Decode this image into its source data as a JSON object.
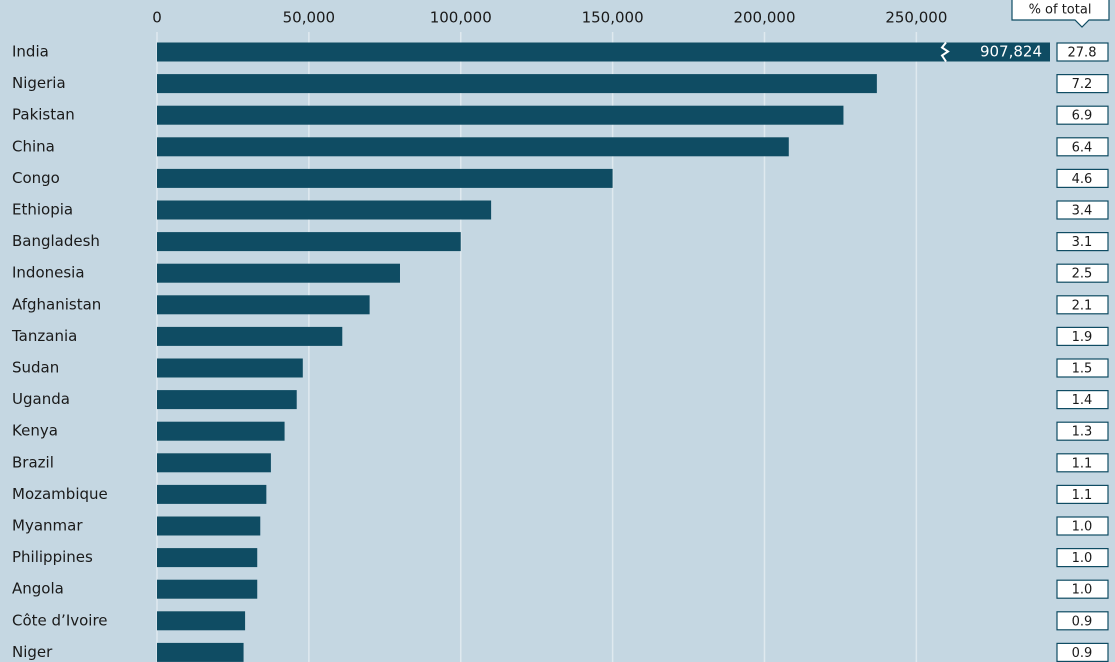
{
  "chart_data": {
    "type": "hbar",
    "categories": [
      "India",
      "Nigeria",
      "Pakistan",
      "China",
      "Congo",
      "Ethiopia",
      "Bangladesh",
      "Indonesia",
      "Afghanistan",
      "Tanzania",
      "Sudan",
      "Uganda",
      "Kenya",
      "Brazil",
      "Mozambique",
      "Myanmar",
      "Philippines",
      "Angola",
      "Côte d’Ivoire",
      "Niger"
    ],
    "values": [
      907824,
      237000,
      226000,
      208000,
      150000,
      110000,
      100000,
      80000,
      70000,
      61000,
      48000,
      46000,
      42000,
      37500,
      36000,
      34000,
      33000,
      33000,
      29000,
      28500
    ],
    "value_labels": [
      "907,824",
      null,
      null,
      null,
      null,
      null,
      null,
      null,
      null,
      null,
      null,
      null,
      null,
      null,
      null,
      null,
      null,
      null,
      null,
      null
    ],
    "color": "#0f4c63",
    "xlim": [
      0,
      294000
    ],
    "xticks": [
      0,
      {
        "value": 50000,
        "label": "50,000"
      },
      {
        "value": 100000,
        "label": "100,000"
      },
      {
        "value": 150000,
        "label": "150,000"
      },
      {
        "value": 200000,
        "label": "200,000"
      },
      {
        "value": 250000,
        "label": "250,000"
      }
    ],
    "grid": true,
    "share": {
      "title": "% of total",
      "values": [
        27.8,
        7.2,
        6.9,
        6.4,
        4.6,
        3.4,
        3.1,
        2.5,
        2.1,
        1.9,
        1.5,
        1.4,
        1.3,
        1.1,
        1.1,
        1.0,
        1.0,
        1.0,
        0.9,
        0.9
      ],
      "value_labels": [
        null,
        null,
        null,
        null,
        null,
        null,
        null,
        null,
        null,
        null,
        null,
        null,
        null,
        null,
        null,
        "1.0",
        "1.0",
        "1.0",
        null,
        null
      ]
    }
  }
}
